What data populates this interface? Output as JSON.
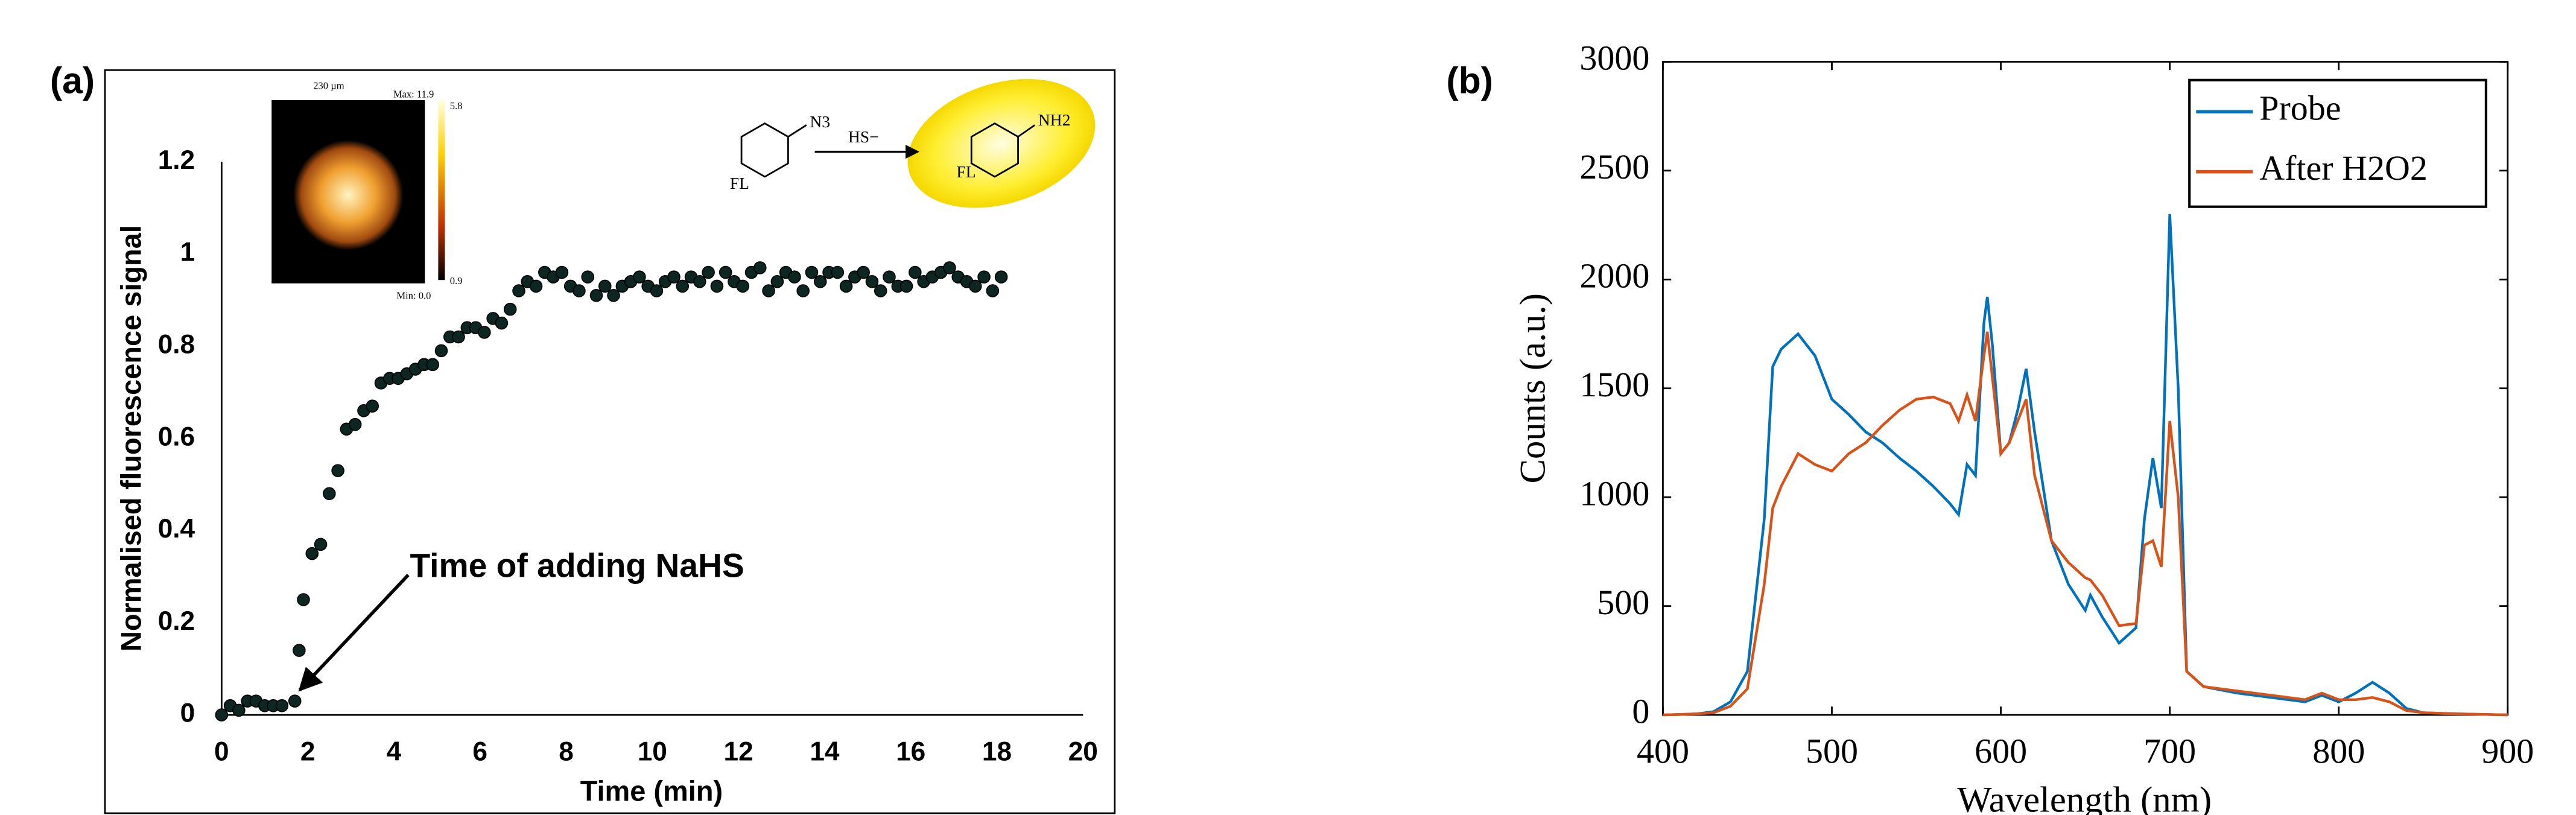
{
  "chart_data": [
    {
      "type": "scatter",
      "panel_label": "(a)",
      "x_label": "Time (min)",
      "y_label": "Normalised fluorescence signal",
      "annotation": "Time of adding NaHS",
      "inset": {
        "scale": "230 µm",
        "max": "Max: 11.9",
        "bar_top": "5.8",
        "bar_bottom": "0.9",
        "min": "Min: 0.0"
      },
      "reaction": {
        "left_group": "N3",
        "reagent": "HS−",
        "right_group": "NH2",
        "left_label": "FL",
        "right_label": "FL"
      },
      "color": "#0d2622",
      "x": [
        0,
        0.2,
        0.4,
        0.6,
        0.8,
        1.0,
        1.2,
        1.4,
        1.7,
        1.8,
        1.9,
        2.1,
        2.3,
        2.5,
        2.7,
        2.9,
        3.1,
        3.3,
        3.5,
        3.7,
        3.9,
        4.1,
        4.3,
        4.5,
        4.7,
        4.9,
        5.1,
        5.3,
        5.5,
        5.7,
        5.9,
        6.1,
        6.3,
        6.5,
        6.7,
        6.9,
        7.1,
        7.3,
        7.5,
        7.7,
        7.9,
        8.1,
        8.3,
        8.5,
        8.7,
        8.9,
        9.1,
        9.3,
        9.5,
        9.7,
        9.9,
        10.1,
        10.3,
        10.5,
        10.7,
        10.9,
        11.1,
        11.3,
        11.5,
        11.7,
        11.9,
        12.1,
        12.3,
        12.5,
        12.7,
        12.9,
        13.1,
        13.3,
        13.5,
        13.7,
        13.9,
        14.1,
        14.3,
        14.5,
        14.7,
        14.9,
        15.1,
        15.3,
        15.5,
        15.7,
        15.9,
        16.1,
        16.3,
        16.5,
        16.7,
        16.9,
        17.1,
        17.3,
        17.5,
        17.7,
        17.9,
        18.1
      ],
      "values": [
        0,
        0.02,
        0.01,
        0.03,
        0.03,
        0.02,
        0.02,
        0.02,
        0.03,
        0.14,
        0.25,
        0.35,
        0.37,
        0.48,
        0.53,
        0.62,
        0.63,
        0.66,
        0.67,
        0.72,
        0.73,
        0.73,
        0.74,
        0.75,
        0.76,
        0.76,
        0.79,
        0.82,
        0.82,
        0.84,
        0.84,
        0.83,
        0.86,
        0.85,
        0.88,
        0.92,
        0.94,
        0.93,
        0.96,
        0.95,
        0.96,
        0.93,
        0.92,
        0.95,
        0.91,
        0.93,
        0.91,
        0.93,
        0.94,
        0.95,
        0.93,
        0.92,
        0.94,
        0.95,
        0.93,
        0.95,
        0.94,
        0.96,
        0.93,
        0.96,
        0.94,
        0.93,
        0.96,
        0.97,
        0.92,
        0.94,
        0.96,
        0.95,
        0.92,
        0.96,
        0.94,
        0.96,
        0.96,
        0.93,
        0.95,
        0.96,
        0.94,
        0.92,
        0.95,
        0.93,
        0.93,
        0.96,
        0.94,
        0.95,
        0.96,
        0.97,
        0.95,
        0.94,
        0.93,
        0.95,
        0.92,
        0.95
      ],
      "xlim": [
        0,
        20
      ],
      "xticks": [
        0,
        2,
        4,
        6,
        8,
        10,
        12,
        14,
        16,
        18,
        20
      ],
      "ylim": [
        0,
        1.2
      ],
      "yticks": [
        0,
        0.2,
        0.4,
        0.6,
        0.8,
        1,
        1.2
      ]
    },
    {
      "type": "line",
      "panel_label": "(b)",
      "x_label": "Wavelength (nm)",
      "y_label": "Counts (a.u.)",
      "legend": "upper right",
      "x": [
        400,
        410,
        420,
        430,
        440,
        450,
        460,
        465,
        470,
        480,
        490,
        500,
        510,
        520,
        530,
        540,
        550,
        560,
        570,
        575,
        580,
        585,
        590,
        592,
        595,
        600,
        605,
        610,
        615,
        620,
        630,
        640,
        650,
        653,
        660,
        670,
        680,
        685,
        690,
        695,
        700,
        705,
        710,
        720,
        740,
        760,
        780,
        790,
        800,
        810,
        820,
        830,
        840,
        850,
        870,
        900
      ],
      "series": [
        {
          "name": "Probe",
          "color": "#0072BD",
          "values": [
            0,
            2,
            5,
            15,
            60,
            200,
            900,
            1600,
            1680,
            1750,
            1650,
            1450,
            1380,
            1300,
            1250,
            1180,
            1120,
            1050,
            970,
            920,
            1150,
            1100,
            1800,
            1920,
            1700,
            1200,
            1250,
            1400,
            1590,
            1300,
            800,
            600,
            480,
            550,
            450,
            330,
            400,
            900,
            1180,
            950,
            2300,
            1500,
            200,
            130,
            100,
            80,
            60,
            90,
            60,
            100,
            150,
            100,
            30,
            10,
            5,
            0
          ]
        },
        {
          "name": "After H2O2",
          "color": "#D95319",
          "values": [
            0,
            2,
            5,
            10,
            40,
            120,
            600,
            950,
            1050,
            1200,
            1150,
            1120,
            1200,
            1250,
            1330,
            1400,
            1450,
            1460,
            1430,
            1350,
            1470,
            1350,
            1650,
            1760,
            1550,
            1200,
            1250,
            1350,
            1450,
            1100,
            800,
            700,
            630,
            620,
            550,
            410,
            420,
            780,
            800,
            680,
            1350,
            1000,
            200,
            130,
            110,
            90,
            70,
            100,
            70,
            70,
            80,
            60,
            20,
            10,
            5,
            0
          ]
        }
      ],
      "xlim": [
        400,
        900
      ],
      "xticks": [
        400,
        500,
        600,
        700,
        800,
        900
      ],
      "ylim": [
        0,
        3000
      ],
      "yticks": [
        0,
        500,
        1000,
        1500,
        2000,
        2500,
        3000
      ]
    }
  ]
}
